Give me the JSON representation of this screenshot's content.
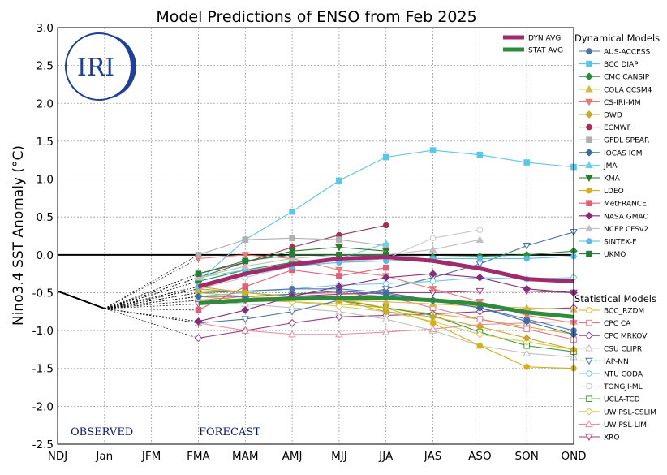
{
  "chart_data": {
    "type": "line",
    "title": "Model Predictions of ENSO from Feb 2025",
    "xlabel": "",
    "ylabel": "Nino3.4 SST Anomaly (°C)",
    "ylim": [
      -2.5,
      3.0
    ],
    "yticks": [
      "3.0",
      "2.5",
      "2.0",
      "1.5",
      "1.0",
      "0.5",
      "0.0",
      "-0.5",
      "-1.0",
      "-1.5",
      "-2.0",
      "-2.5"
    ],
    "ytick_values": [
      3.0,
      2.5,
      2.0,
      1.5,
      1.0,
      0.5,
      0.0,
      -0.5,
      -1.0,
      -1.5,
      -2.0,
      -2.5
    ],
    "categories": [
      "NDJ",
      "Jan",
      "JFM",
      "FMA",
      "MAM",
      "AMJ",
      "MJJ",
      "JJA",
      "JAS",
      "ASO",
      "SON",
      "OND"
    ],
    "grid": true,
    "logo_text": "IRI",
    "annotations": {
      "observed": "OBSERVED",
      "forecast": "FORECAST"
    },
    "observed": {
      "values": [
        -0.48,
        -0.71
      ]
    },
    "averages": [
      {
        "name": "DYN AVG",
        "color": "#a12a6e",
        "values": [
          null,
          null,
          null,
          -0.42,
          -0.25,
          -0.13,
          -0.05,
          -0.03,
          -0.08,
          -0.18,
          -0.32,
          -0.35
        ]
      },
      {
        "name": "STAT AVG",
        "color": "#2e8b3a",
        "values": [
          null,
          null,
          null,
          -0.64,
          -0.6,
          -0.58,
          -0.57,
          -0.57,
          -0.6,
          -0.65,
          -0.76,
          -0.82
        ]
      }
    ],
    "legend_titles": {
      "dynamical": "Dynamical Models",
      "statistical": "Statistical Models"
    },
    "dynamical": [
      {
        "name": "AUS-ACCESS",
        "color": "#4f73a8",
        "marker": "circle",
        "values": [
          null,
          null,
          null,
          -0.5,
          -0.48,
          -0.45,
          -0.45,
          -0.5,
          -0.6,
          -0.7,
          -0.85,
          -1.0
        ]
      },
      {
        "name": "BCC DIAP",
        "color": "#5bc6e6",
        "marker": "square",
        "values": [
          null,
          null,
          null,
          -0.35,
          0.2,
          0.57,
          0.98,
          1.29,
          1.38,
          1.32,
          1.22,
          1.16
        ]
      },
      {
        "name": "CMC CANSIP",
        "color": "#2a8a3a",
        "marker": "diamond",
        "values": [
          null,
          null,
          null,
          -0.35,
          -0.2,
          -0.1,
          -0.05,
          -0.02,
          -0.03,
          -0.02,
          0.0,
          0.05
        ]
      },
      {
        "name": "COLA CCSM4",
        "color": "#d6b84a",
        "marker": "triangle-up",
        "values": [
          null,
          null,
          null,
          -0.5,
          -0.55,
          -0.58,
          -0.6,
          -0.62,
          -0.65,
          -0.68,
          -0.7,
          -0.72
        ]
      },
      {
        "name": "CS-IRI-MM",
        "color": "#e87a7a",
        "marker": "triangle-down",
        "values": [
          null,
          null,
          null,
          -0.05,
          0.0,
          -0.05,
          -0.2,
          -0.28,
          -0.45,
          -0.62,
          -0.8,
          -0.9
        ]
      },
      {
        "name": "DWD",
        "color": "#c9a830",
        "marker": "diamond",
        "values": [
          null,
          null,
          null,
          -0.42,
          -0.5,
          -0.55,
          -0.6,
          -0.75,
          -0.82,
          -0.95,
          -1.1,
          -1.25
        ]
      },
      {
        "name": "ECMWF",
        "color": "#a0325a",
        "marker": "circle",
        "values": [
          null,
          null,
          null,
          -0.25,
          -0.1,
          0.1,
          0.26,
          0.39,
          null,
          null,
          null,
          null
        ]
      },
      {
        "name": "GFDL SPEAR",
        "color": "#b0b0b0",
        "marker": "square",
        "values": [
          null,
          null,
          null,
          0.0,
          0.2,
          0.22,
          0.2,
          0.12,
          null,
          null,
          null,
          null
        ]
      },
      {
        "name": "IOCAS ICM",
        "color": "#3b6ea0",
        "marker": "diamond",
        "values": [
          null,
          null,
          null,
          -0.55,
          -0.55,
          -0.52,
          -0.48,
          -0.52,
          -0.6,
          -0.7,
          -0.88,
          -1.05
        ]
      },
      {
        "name": "JMA",
        "color": "#6fd0ea",
        "marker": "triangle-up",
        "values": [
          null,
          null,
          null,
          -0.3,
          -0.2,
          -0.15,
          -0.05,
          0.15,
          null,
          null,
          null,
          null
        ]
      },
      {
        "name": "KMA",
        "color": "#2a7a2a",
        "marker": "triangle-down",
        "values": [
          null,
          null,
          null,
          -0.3,
          -0.1,
          0.05,
          0.1,
          0.05,
          null,
          null,
          null,
          null
        ]
      },
      {
        "name": "LDEO",
        "color": "#d4b020",
        "marker": "circle",
        "values": [
          null,
          null,
          null,
          -0.45,
          -0.5,
          -0.55,
          -0.58,
          -0.7,
          -0.9,
          -1.2,
          -1.48,
          -1.5
        ]
      },
      {
        "name": "MetFRANCE",
        "color": "#e0607a",
        "marker": "square",
        "values": [
          null,
          null,
          null,
          -0.73,
          -0.42,
          -0.2,
          -0.28,
          -0.17,
          null,
          null,
          null,
          null
        ]
      },
      {
        "name": "NASA GMAO",
        "color": "#8a2a7a",
        "marker": "diamond",
        "values": [
          null,
          null,
          null,
          -0.88,
          -0.73,
          -0.55,
          -0.42,
          -0.3,
          -0.25,
          -0.3,
          -0.45,
          -0.5
        ]
      },
      {
        "name": "NCEP CFSv2",
        "color": "#c0c0c0",
        "marker": "triangle-up",
        "values": [
          null,
          null,
          null,
          -0.3,
          -0.15,
          -0.05,
          0.0,
          0.0,
          0.07,
          0.2,
          null,
          null
        ]
      },
      {
        "name": "SINTEX-F",
        "color": "#5bbde0",
        "marker": "circle",
        "values": [
          null,
          null,
          null,
          -0.42,
          -0.25,
          -0.15,
          -0.1,
          -0.08,
          -0.05,
          -0.05,
          -0.05,
          -0.02
        ]
      },
      {
        "name": "UKMO",
        "color": "#2a7a3a",
        "marker": "square",
        "values": [
          null,
          null,
          null,
          -0.25,
          -0.08,
          0.0,
          0.0,
          0.0,
          null,
          null,
          null,
          null
        ]
      }
    ],
    "statistical": [
      {
        "name": "BCC_RZDM",
        "color": "#d4b62a",
        "marker": "circle",
        "values": [
          null,
          null,
          null,
          -0.55,
          -0.6,
          -0.62,
          -0.65,
          -0.7,
          -0.78,
          -0.85,
          -0.95,
          -1.05
        ]
      },
      {
        "name": "CPC CA",
        "color": "#e07a8a",
        "marker": "square",
        "values": [
          null,
          null,
          null,
          -0.6,
          -0.55,
          -0.52,
          -0.5,
          -0.55,
          -0.7,
          -0.85,
          -0.98,
          -1.12
        ]
      },
      {
        "name": "CPC MRKOV",
        "color": "#9a3a8a",
        "marker": "diamond",
        "values": [
          null,
          null,
          null,
          -1.1,
          -1.0,
          -0.9,
          -0.82,
          -0.8,
          -0.78,
          -0.75,
          -0.72,
          -0.7
        ]
      },
      {
        "name": "CSU CLIPR",
        "color": "#c0c0c0",
        "marker": "triangle-up",
        "values": [
          null,
          null,
          null,
          -0.6,
          -0.65,
          -0.7,
          -0.75,
          -0.85,
          -1.0,
          -1.2,
          -1.3,
          -1.35
        ]
      },
      {
        "name": "IAP-NN",
        "color": "#4a70a8",
        "marker": "triangle-down",
        "values": [
          null,
          null,
          null,
          -0.9,
          -0.85,
          -0.75,
          -0.6,
          -0.45,
          -0.3,
          -0.12,
          0.12,
          0.3
        ]
      },
      {
        "name": "NTU CODA",
        "color": "#6fc8e8",
        "marker": "circle",
        "values": [
          null,
          null,
          null,
          -0.55,
          -0.5,
          -0.45,
          -0.4,
          -0.38,
          -0.35,
          -0.3,
          -0.32,
          -0.3
        ]
      },
      {
        "name": "TONGJI-ML",
        "color": "#c8c8c8",
        "marker": "circle",
        "values": [
          null,
          null,
          null,
          -0.45,
          -0.3,
          -0.15,
          -0.1,
          -0.05,
          0.22,
          0.33,
          null,
          null
        ]
      },
      {
        "name": "UCLA-TCD",
        "color": "#3a9a3a",
        "marker": "square",
        "values": [
          null,
          null,
          null,
          -0.45,
          -0.5,
          -0.55,
          -0.6,
          -0.7,
          -0.8,
          -1.02,
          -1.2,
          -1.28
        ]
      },
      {
        "name": "UW PSL-CSLIM",
        "color": "#d8c850",
        "marker": "diamond",
        "values": [
          null,
          null,
          null,
          -0.5,
          -0.55,
          -0.62,
          -0.68,
          -0.75,
          -0.88,
          -1.05,
          -1.15,
          -1.25
        ]
      },
      {
        "name": "UW PSL-LIM",
        "color": "#e8909a",
        "marker": "triangle-up",
        "values": [
          null,
          null,
          null,
          -0.9,
          -1.0,
          -1.05,
          -1.05,
          -1.02,
          -0.98,
          -0.92,
          -0.9,
          -0.88
        ]
      },
      {
        "name": "XRO",
        "color": "#a03a7a",
        "marker": "triangle-down",
        "values": [
          null,
          null,
          null,
          -0.65,
          -0.6,
          -0.55,
          -0.52,
          -0.5,
          -0.5,
          -0.48,
          -0.48,
          -0.5
        ]
      }
    ]
  }
}
